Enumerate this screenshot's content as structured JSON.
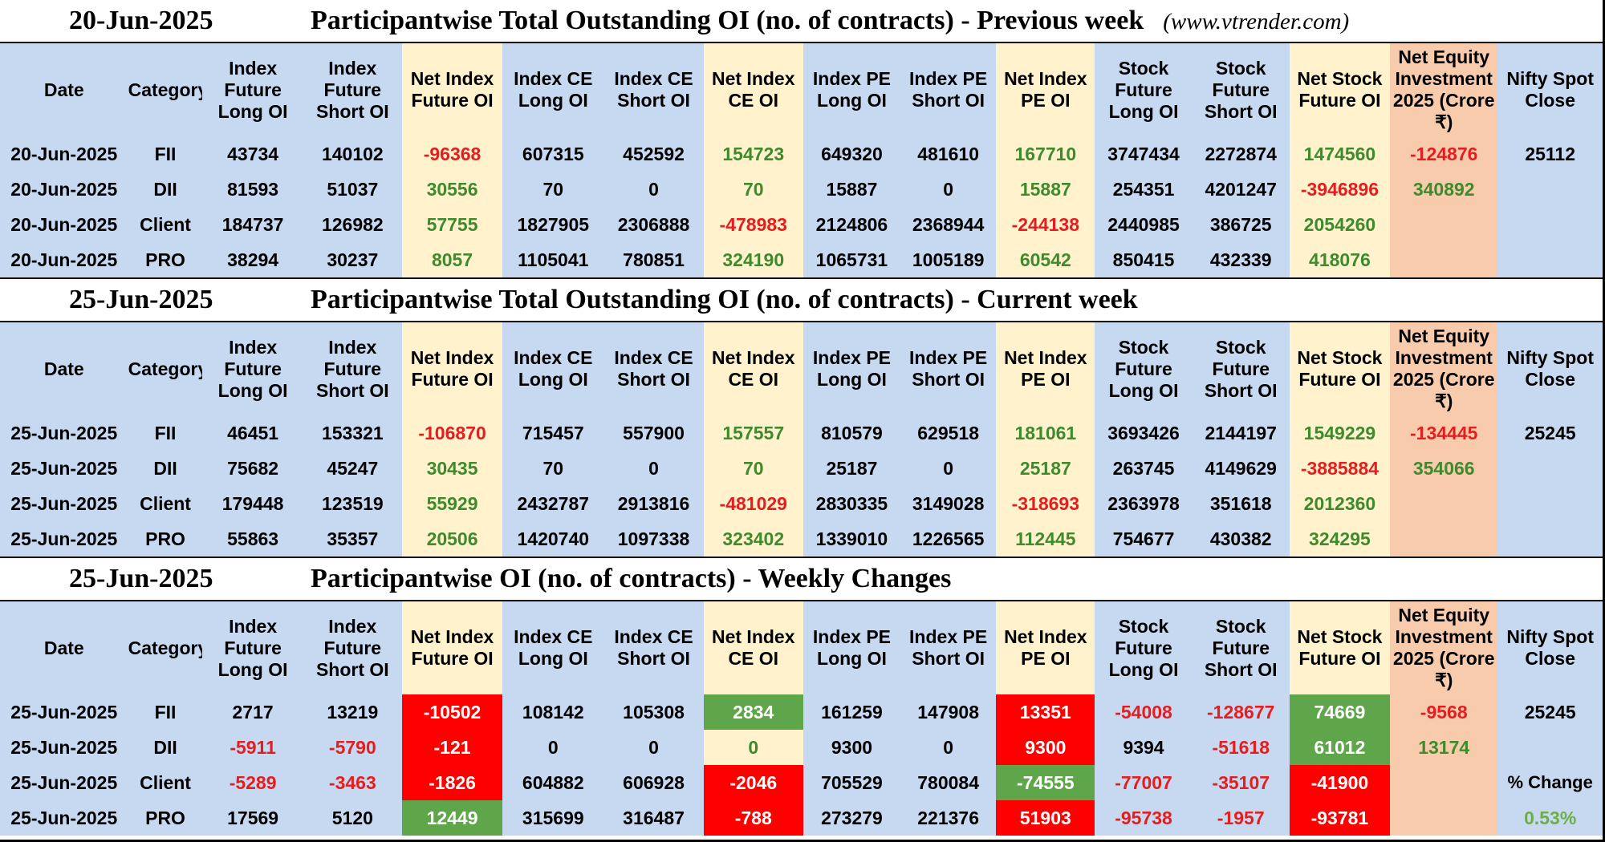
{
  "site": "(www.vtrender.com)",
  "headers": [
    "Date",
    "Category",
    "Index Future Long OI",
    "Index Future Short OI",
    "Net Index Future OI",
    "Index CE Long OI",
    "Index CE Short OI",
    "Net Index CE OI",
    "Index PE Long OI",
    "Index PE Short OI",
    "Net Index PE OI",
    "Stock Future Long OI",
    "Stock Future Short OI",
    "Net Stock Future OI",
    "Net Equity Investment 2025 (Crore ₹)",
    "Nifty Spot Close"
  ],
  "sections": [
    {
      "date": "20-Jun-2025",
      "title": "Participantwise Total Outstanding OI (no. of contracts) - Previous week",
      "rows": [
        {
          "date": "20-Jun-2025",
          "category": "FII",
          "ifl": "43734",
          "ifs": "140102",
          "nif": "-96368",
          "cel": "607315",
          "ces": "452592",
          "nce": "154723",
          "pel": "649320",
          "pes": "481610",
          "npe": "167710",
          "sfl": "3747434",
          "sfs": "2272874",
          "nsf": "1474560",
          "nei": "-124876",
          "nifty": "25112"
        },
        {
          "date": "20-Jun-2025",
          "category": "DII",
          "ifl": "81593",
          "ifs": "51037",
          "nif": "30556",
          "cel": "70",
          "ces": "0",
          "nce": "70",
          "pel": "15887",
          "pes": "0",
          "npe": "15887",
          "sfl": "254351",
          "sfs": "4201247",
          "nsf": "-3946896",
          "nei": "340892",
          "nifty": ""
        },
        {
          "date": "20-Jun-2025",
          "category": "Client",
          "ifl": "184737",
          "ifs": "126982",
          "nif": "57755",
          "cel": "1827905",
          "ces": "2306888",
          "nce": "-478983",
          "pel": "2124806",
          "pes": "2368944",
          "npe": "-244138",
          "sfl": "2440985",
          "sfs": "386725",
          "nsf": "2054260",
          "nei": "",
          "nifty": ""
        },
        {
          "date": "20-Jun-2025",
          "category": "PRO",
          "ifl": "38294",
          "ifs": "30237",
          "nif": "8057",
          "cel": "1105041",
          "ces": "780851",
          "nce": "324190",
          "pel": "1065731",
          "pes": "1005189",
          "npe": "60542",
          "sfl": "850415",
          "sfs": "432339",
          "nsf": "418076",
          "nei": "",
          "nifty": ""
        }
      ]
    },
    {
      "date": "25-Jun-2025",
      "title": "Participantwise Total Outstanding OI (no. of contracts) - Current week",
      "rows": [
        {
          "date": "25-Jun-2025",
          "category": "FII",
          "ifl": "46451",
          "ifs": "153321",
          "nif": "-106870",
          "cel": "715457",
          "ces": "557900",
          "nce": "157557",
          "pel": "810579",
          "pes": "629518",
          "npe": "181061",
          "sfl": "3693426",
          "sfs": "2144197",
          "nsf": "1549229",
          "nei": "-134445",
          "nifty": "25245"
        },
        {
          "date": "25-Jun-2025",
          "category": "DII",
          "ifl": "75682",
          "ifs": "45247",
          "nif": "30435",
          "cel": "70",
          "ces": "0",
          "nce": "70",
          "pel": "25187",
          "pes": "0",
          "npe": "25187",
          "sfl": "263745",
          "sfs": "4149629",
          "nsf": "-3885884",
          "nei": "354066",
          "nifty": ""
        },
        {
          "date": "25-Jun-2025",
          "category": "Client",
          "ifl": "179448",
          "ifs": "123519",
          "nif": "55929",
          "cel": "2432787",
          "ces": "2913816",
          "nce": "-481029",
          "pel": "2830335",
          "pes": "3149028",
          "npe": "-318693",
          "sfl": "2363978",
          "sfs": "351618",
          "nsf": "2012360",
          "nei": "",
          "nifty": ""
        },
        {
          "date": "25-Jun-2025",
          "category": "PRO",
          "ifl": "55863",
          "ifs": "35357",
          "nif": "20506",
          "cel": "1420740",
          "ces": "1097338",
          "nce": "323402",
          "pel": "1339010",
          "pes": "1226565",
          "npe": "112445",
          "sfl": "754677",
          "sfs": "430382",
          "nsf": "324295",
          "nei": "",
          "nifty": ""
        }
      ]
    },
    {
      "date": "25-Jun-2025",
      "title": "Participantwise OI (no. of contracts) - Weekly Changes",
      "rows": [
        {
          "date": "25-Jun-2025",
          "category": "FII",
          "ifl": "2717",
          "ifs": "13219",
          "nif": "-10502",
          "cel": "108142",
          "ces": "105308",
          "nce": "2834",
          "pel": "161259",
          "pes": "147908",
          "npe": "13351",
          "sfl": "-54008",
          "sfs": "-128677",
          "nsf": "74669",
          "nei": "-9568",
          "nifty": "25245"
        },
        {
          "date": "25-Jun-2025",
          "category": "DII",
          "ifl": "-5911",
          "ifs": "-5790",
          "nif": "-121",
          "cel": "0",
          "ces": "0",
          "nce": "0",
          "pel": "9300",
          "pes": "0",
          "npe": "9300",
          "sfl": "9394",
          "sfs": "-51618",
          "nsf": "61012",
          "nei": "13174",
          "nifty": ""
        },
        {
          "date": "25-Jun-2025",
          "category": "Client",
          "ifl": "-5289",
          "ifs": "-3463",
          "nif": "-1826",
          "cel": "604882",
          "ces": "606928",
          "nce": "-2046",
          "pel": "705529",
          "pes": "780084",
          "npe": "-74555",
          "sfl": "-77007",
          "sfs": "-35107",
          "nsf": "-41900",
          "nei": "",
          "nifty": "% Change"
        },
        {
          "date": "25-Jun-2025",
          "category": "PRO",
          "ifl": "17569",
          "ifs": "5120",
          "nif": "12449",
          "cel": "315699",
          "ces": "316487",
          "nce": "-788",
          "pel": "273279",
          "pes": "221376",
          "npe": "51903",
          "sfl": "-95738",
          "sfs": "-1957",
          "nsf": "-93781",
          "nei": "",
          "nifty": "0.53%"
        }
      ]
    }
  ]
}
